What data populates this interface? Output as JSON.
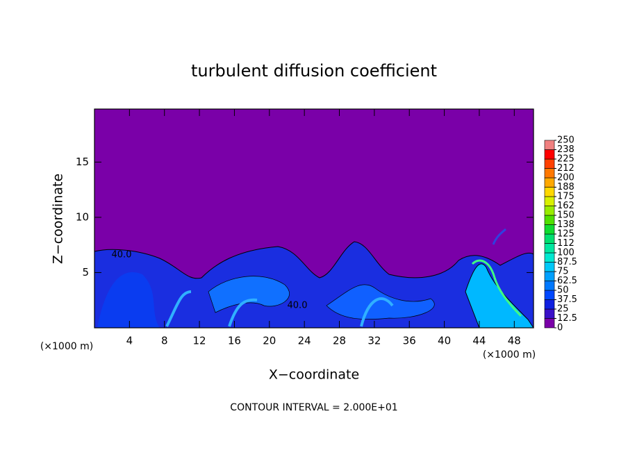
{
  "chart_data": {
    "type": "contour",
    "title": "turbulent diffusion coefficient",
    "xlabel": "X−coordinate",
    "ylabel": "Z−coordinate",
    "x_unit_label": "(×1000 m)",
    "footer": "CONTOUR INTERVAL = 2.000E+01",
    "annotations": [
      "40.0",
      "40.0"
    ],
    "xlim": [
      0,
      50.2
    ],
    "xticks": [
      4,
      8,
      12,
      16,
      20,
      24,
      28,
      32,
      36,
      40,
      44,
      48
    ],
    "ylim": [
      0,
      19.8
    ],
    "yticks": [
      5,
      10,
      15
    ],
    "colorbar_ticks": [
      0,
      12.5,
      25,
      37.5,
      50,
      62.5,
      75,
      87.5,
      100,
      {
        "value": 112.5,
        "label": "112"
      },
      125,
      {
        "value": 137.5,
        "label": "138"
      },
      150,
      {
        "value": 162.5,
        "label": "162"
      },
      175,
      {
        "value": 187.5,
        "label": "188"
      },
      200,
      {
        "value": 212.5,
        "label": "212"
      },
      225,
      {
        "value": 237.5,
        "label": "238"
      },
      250
    ],
    "colorbar_colors": [
      "#7a00a8",
      "#3a10c8",
      "#1020e0",
      "#0048ff",
      "#0078ff",
      "#00a0ff",
      "#00c8f8",
      "#00e8d0",
      "#00e8a0",
      "#00e070",
      "#10dc30",
      "#50e000",
      "#98ec00",
      "#d8f000",
      "#ffd800",
      "#ffa800",
      "#ff7800",
      "#ff4000",
      "#ff0000",
      "#f08080"
    ]
  }
}
